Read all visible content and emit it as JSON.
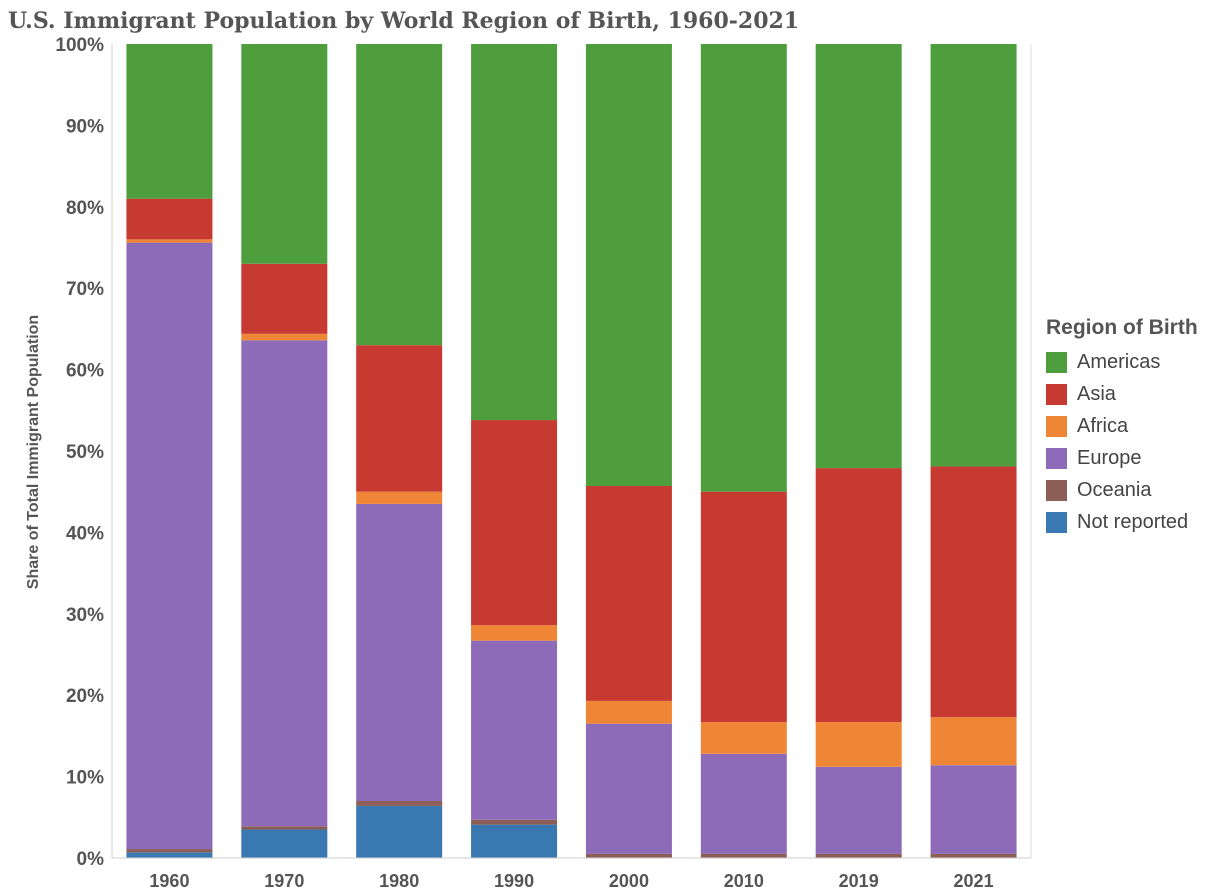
{
  "title": "U.S. Immigrant Population by World Region of Birth, 1960-2021",
  "chart_data": {
    "type": "bar",
    "stacked": true,
    "title": "U.S. Immigrant Population by World Region of Birth, 1960-2021",
    "xlabel": "",
    "ylabel": "Share of Total Immigrant Population",
    "ylim": [
      0,
      100
    ],
    "y_ticks": [
      "0%",
      "10%",
      "20%",
      "30%",
      "40%",
      "50%",
      "60%",
      "70%",
      "80%",
      "90%",
      "100%"
    ],
    "grid": false,
    "legend_title": "Region of Birth",
    "legend_position": "right",
    "categories": [
      "1960",
      "1970",
      "1980",
      "1990",
      "2000",
      "2010",
      "2019",
      "2021"
    ],
    "series": [
      {
        "name": "Not reported",
        "color": "#3a78b2",
        "values": [
          0.7,
          3.5,
          6.4,
          4.1,
          0.0,
          0.0,
          0.0,
          0.0
        ]
      },
      {
        "name": "Oceania",
        "color": "#8c5e55",
        "values": [
          0.4,
          0.4,
          0.6,
          0.6,
          0.5,
          0.5,
          0.5,
          0.5
        ]
      },
      {
        "name": "Europe",
        "color": "#8e6bb8",
        "values": [
          74.5,
          59.7,
          36.5,
          22.0,
          16.0,
          12.3,
          10.7,
          10.9
        ]
      },
      {
        "name": "Africa",
        "color": "#ef8636",
        "values": [
          0.4,
          0.8,
          1.5,
          1.9,
          2.8,
          3.9,
          5.5,
          5.9
        ]
      },
      {
        "name": "Asia",
        "color": "#c63a32",
        "values": [
          5.0,
          8.6,
          18.0,
          25.2,
          26.4,
          28.3,
          31.2,
          30.8
        ]
      },
      {
        "name": "Americas",
        "color": "#4f9e3d",
        "values": [
          19.0,
          27.0,
          37.0,
          46.2,
          54.3,
          55.0,
          52.1,
          51.9
        ]
      }
    ]
  },
  "legend": {
    "title": "Region of Birth",
    "items": [
      {
        "label": "Americas",
        "color": "#4f9e3d"
      },
      {
        "label": "Asia",
        "color": "#c63a32"
      },
      {
        "label": "Africa",
        "color": "#ef8636"
      },
      {
        "label": "Europe",
        "color": "#8e6bb8"
      },
      {
        "label": "Oceania",
        "color": "#8c5e55"
      },
      {
        "label": "Not reported",
        "color": "#3a78b2"
      }
    ]
  }
}
